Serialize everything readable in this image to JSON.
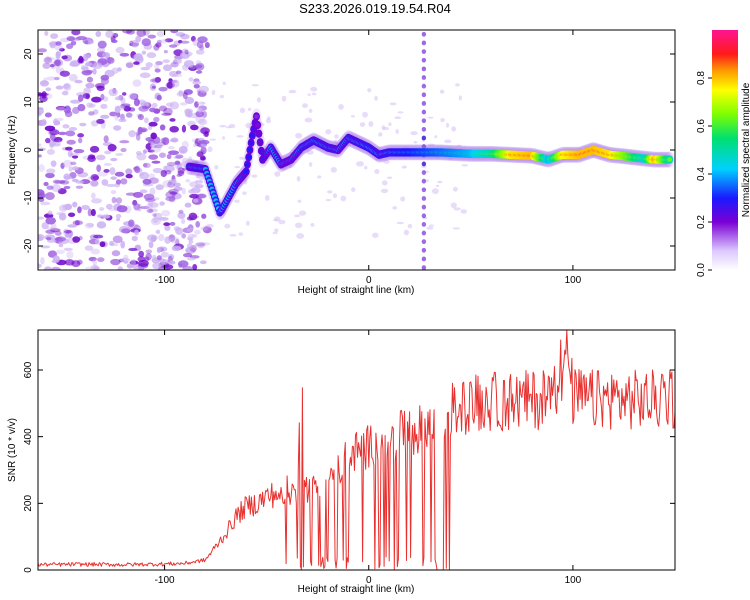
{
  "title": "S233.2026.019.19.54.R04",
  "colors": {
    "snr_line": "#e8312f",
    "axis": "#000000",
    "noise": "#8a2be2"
  },
  "chart_data": [
    {
      "type": "heatmap",
      "name": "spectrogram",
      "xlabel": "Height of straight line (km)",
      "ylabel": "Frequency (Hz)",
      "xlim": [
        -162,
        150
      ],
      "ylim": [
        -25,
        25
      ],
      "xticks": [
        -100,
        0,
        100
      ],
      "yticks": [
        -20,
        -10,
        0,
        10,
        20
      ],
      "xtick_labels": [
        "-100",
        "0",
        "100"
      ],
      "ytick_labels": [
        "-20",
        "-10",
        "0",
        "10",
        "20"
      ],
      "colorbar": {
        "label": "Normalized spectral amplitude",
        "range": [
          0,
          1
        ],
        "ticks": [
          0.0,
          0.2,
          0.4,
          0.6,
          0.8
        ],
        "tick_labels": [
          "0.0",
          "0.2",
          "0.4",
          "0.6",
          "0.8"
        ]
      },
      "noise_region_x": [
        -162,
        -85
      ],
      "vertical_stripe_x": 27,
      "ridge": [
        {
          "x": -88,
          "f": -3.5,
          "a": 0.38
        },
        {
          "x": -80,
          "f": -4.0,
          "a": 0.4
        },
        {
          "x": -73,
          "f": -13.0,
          "a": 0.42
        },
        {
          "x": -72,
          "f": -12.5,
          "a": 0.4
        },
        {
          "x": -65,
          "f": -7.0,
          "a": 0.4
        },
        {
          "x": -60,
          "f": -4.5,
          "a": 0.3
        },
        {
          "x": -57,
          "f": 3.0,
          "a": 0.28
        },
        {
          "x": -55,
          "f": 7.0,
          "a": 0.18
        },
        {
          "x": -52,
          "f": -2.0,
          "a": 0.25
        },
        {
          "x": -48,
          "f": 0.5,
          "a": 0.4
        },
        {
          "x": -43,
          "f": -3.0,
          "a": 0.38
        },
        {
          "x": -38,
          "f": -2.0,
          "a": 0.35
        },
        {
          "x": -33,
          "f": 0.5,
          "a": 0.4
        },
        {
          "x": -27,
          "f": 2.0,
          "a": 0.4
        },
        {
          "x": -20,
          "f": 0.5,
          "a": 0.4
        },
        {
          "x": -15,
          "f": 0.0,
          "a": 0.38
        },
        {
          "x": -10,
          "f": 2.5,
          "a": 0.4
        },
        {
          "x": -5,
          "f": 1.5,
          "a": 0.4
        },
        {
          "x": 0,
          "f": 0.5,
          "a": 0.42
        },
        {
          "x": 5,
          "f": -1.0,
          "a": 0.4
        },
        {
          "x": 10,
          "f": -0.5,
          "a": 0.42
        },
        {
          "x": 20,
          "f": -0.5,
          "a": 0.45
        },
        {
          "x": 35,
          "f": -0.5,
          "a": 0.5
        },
        {
          "x": 50,
          "f": -0.8,
          "a": 0.55
        },
        {
          "x": 60,
          "f": -0.8,
          "a": 0.65
        },
        {
          "x": 70,
          "f": -1.0,
          "a": 0.92
        },
        {
          "x": 80,
          "f": -1.2,
          "a": 0.95
        },
        {
          "x": 88,
          "f": -2.0,
          "a": 0.55
        },
        {
          "x": 95,
          "f": -1.0,
          "a": 0.9
        },
        {
          "x": 103,
          "f": -1.0,
          "a": 0.95
        },
        {
          "x": 110,
          "f": 0.0,
          "a": 0.95
        },
        {
          "x": 118,
          "f": -1.0,
          "a": 0.92
        },
        {
          "x": 125,
          "f": -1.3,
          "a": 0.8
        },
        {
          "x": 135,
          "f": -1.8,
          "a": 0.6
        },
        {
          "x": 140,
          "f": -2.0,
          "a": 0.95
        },
        {
          "x": 148,
          "f": -2.0,
          "a": 0.6
        }
      ]
    },
    {
      "type": "line",
      "name": "snr",
      "xlabel": "Height of straight line (km)",
      "ylabel": "SNR (10 * v/v)",
      "xlim": [
        -162,
        150
      ],
      "ylim": [
        0,
        720
      ],
      "xticks": [
        -100,
        0,
        100
      ],
      "yticks": [
        0,
        200,
        400,
        600
      ],
      "xtick_labels": [
        "-100",
        "0",
        "100"
      ],
      "ytick_labels": [
        "0",
        "200",
        "400",
        "600"
      ],
      "series": [
        {
          "name": "SNR",
          "x": [
            -162,
            -140,
            -120,
            -100,
            -90,
            -80,
            -75,
            -70,
            -65,
            -60,
            -55,
            -50,
            -45,
            -40,
            -35,
            -33,
            -31,
            -28,
            -25,
            -20,
            -15,
            -10,
            -5,
            0,
            5,
            10,
            15,
            20,
            25,
            28,
            30,
            32,
            34,
            36,
            38,
            40,
            45,
            50,
            60,
            70,
            80,
            90,
            93,
            95,
            97,
            100,
            110,
            120,
            130,
            140,
            150
          ],
          "y": [
            16,
            17,
            16,
            18,
            20,
            30,
            70,
            110,
            160,
            190,
            200,
            220,
            230,
            240,
            230,
            540,
            250,
            240,
            250,
            280,
            300,
            340,
            360,
            370,
            385,
            400,
            405,
            410,
            420,
            430,
            440,
            450,
            455,
            460,
            470,
            480,
            490,
            500,
            505,
            505,
            510,
            515,
            600,
            700,
            650,
            520,
            510,
            515,
            510,
            510,
            515
          ]
        }
      ]
    }
  ]
}
